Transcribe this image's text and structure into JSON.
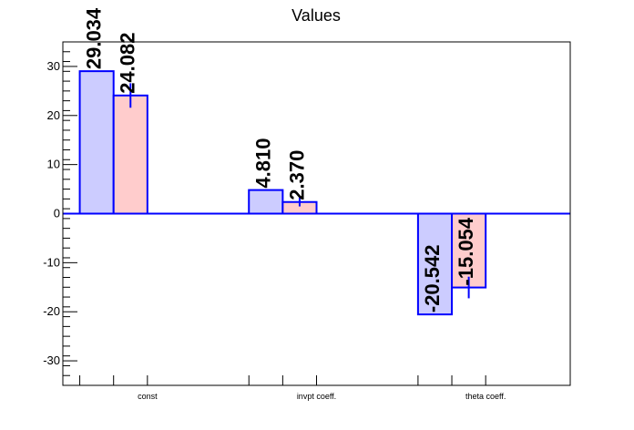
{
  "chart_data": {
    "type": "bar",
    "title": "Values",
    "xlabel": "",
    "ylabel": "",
    "categories": [
      "const",
      "invpt coeff.",
      "theta coeff."
    ],
    "ylim": [
      -35,
      35
    ],
    "yticks": [
      -30,
      -20,
      -10,
      0,
      10,
      20,
      30
    ],
    "value_labels": [
      "29.034",
      "24.082",
      "4.810",
      "2.370",
      "-20.542",
      "-15.054"
    ],
    "series": [
      {
        "values": [
          29.034,
          4.81,
          -20.542
        ],
        "errors": [
          0,
          0,
          0
        ],
        "color": "#ccccff"
      },
      {
        "values": [
          24.082,
          2.37,
          -15.054
        ],
        "errors": [
          2.5,
          0.9,
          2.2
        ],
        "color": "#ffcccc"
      }
    ],
    "edge_color": "#0000ff",
    "grid": false,
    "legend": "none"
  }
}
